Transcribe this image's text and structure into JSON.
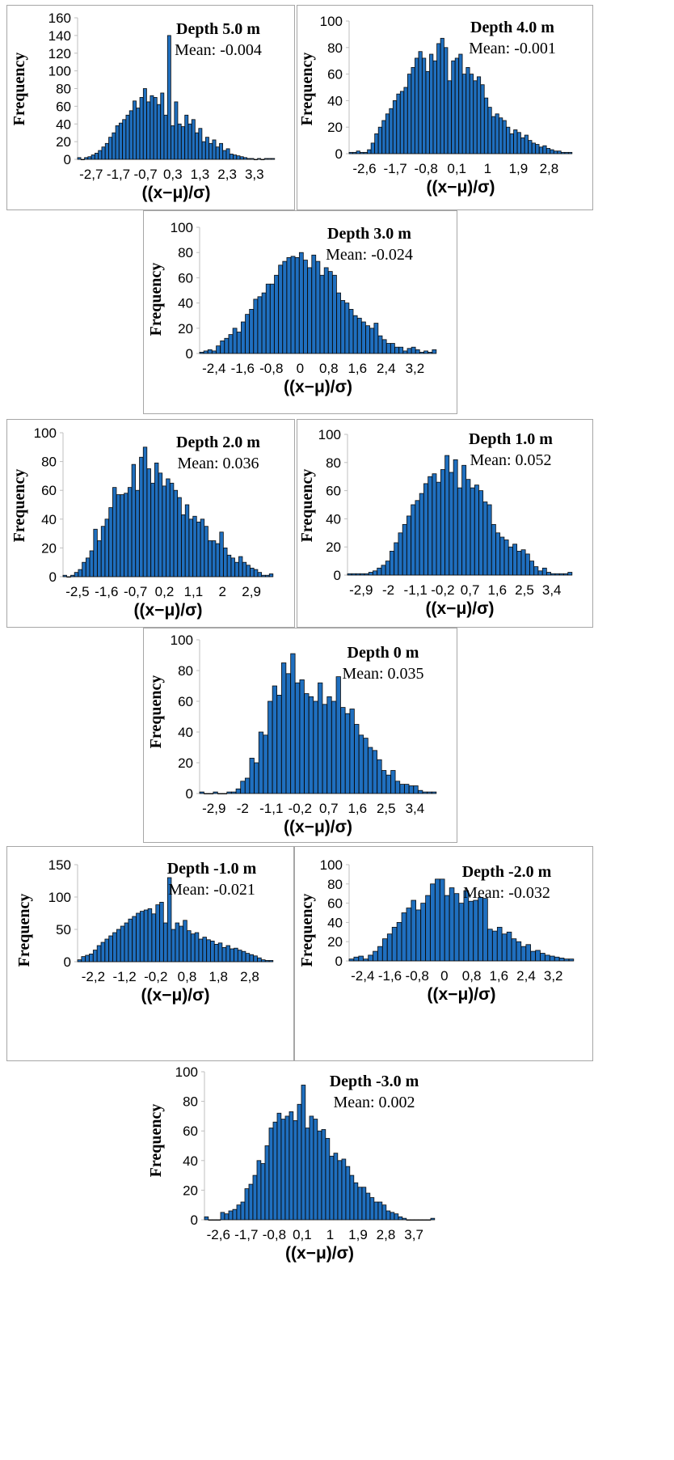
{
  "colors": {
    "bar_fill": "#1f6fbf",
    "bar_stroke": "#0b0b0b",
    "axis": "#bfbfbf",
    "frame": "#a6a6a6"
  },
  "chart_data": [
    {
      "type": "bar",
      "title": "Depth  5.0 m",
      "subtitle": "Mean: -0.004",
      "xlabel": "((x−μ)/σ)",
      "ylabel": "Frequency",
      "ylim": [
        0,
        160
      ],
      "yticks": [
        0,
        20,
        40,
        60,
        80,
        100,
        120,
        140,
        160
      ],
      "xticks": [
        "-2,7",
        "-1,7",
        "-0,7",
        "0,3",
        "1,3",
        "2,3",
        "3,3"
      ],
      "grid": false,
      "values": [
        2,
        0,
        2,
        3,
        5,
        7,
        10,
        14,
        18,
        25,
        30,
        38,
        41,
        45,
        50,
        55,
        66,
        58,
        70,
        80,
        65,
        72,
        70,
        62,
        75,
        50,
        140,
        38,
        65,
        40,
        37,
        50,
        40,
        45,
        30,
        35,
        20,
        25,
        18,
        22,
        14,
        18,
        10,
        12,
        6,
        5,
        4,
        3,
        2,
        1,
        1,
        0,
        1,
        0,
        1,
        1,
        1
      ]
    },
    {
      "type": "bar",
      "title": "Depth  4.0 m",
      "subtitle": "Mean: -0.001",
      "xlabel": "((x−μ)/σ)",
      "ylabel": "Frequency",
      "ylim": [
        0,
        100
      ],
      "yticks": [
        0,
        20,
        40,
        60,
        80,
        100
      ],
      "xticks": [
        "-2,6",
        "-1,7",
        "-0,8",
        "0,1",
        "1",
        "1,9",
        "2,8"
      ],
      "grid": false,
      "values": [
        1,
        1,
        2,
        1,
        1,
        3,
        8,
        15,
        20,
        25,
        30,
        34,
        40,
        45,
        47,
        50,
        60,
        65,
        72,
        77,
        72,
        62,
        75,
        70,
        83,
        87,
        80,
        55,
        70,
        72,
        75,
        60,
        65,
        60,
        55,
        58,
        52,
        42,
        35,
        28,
        30,
        27,
        25,
        20,
        15,
        18,
        16,
        12,
        14,
        10,
        8,
        7,
        5,
        6,
        4,
        3,
        2,
        2,
        1,
        1,
        1
      ]
    },
    {
      "type": "bar",
      "title": "Depth  3.0 m",
      "subtitle": "Mean: -0.024",
      "xlabel": "((x−μ)/σ)",
      "ylabel": "Frequency",
      "ylim": [
        0,
        100
      ],
      "yticks": [
        0,
        20,
        40,
        60,
        80,
        100
      ],
      "xticks": [
        "-2,4",
        "-1,6",
        "-0,8",
        "0",
        "0,8",
        "1,6",
        "2,4",
        "3,2"
      ],
      "grid": false,
      "values": [
        1,
        2,
        3,
        2,
        6,
        10,
        12,
        15,
        20,
        17,
        25,
        31,
        35,
        43,
        45,
        48,
        55,
        55,
        62,
        70,
        73,
        76,
        77,
        76,
        80,
        74,
        68,
        78,
        73,
        62,
        68,
        65,
        62,
        48,
        42,
        40,
        35,
        30,
        28,
        25,
        22,
        20,
        24,
        14,
        11,
        8,
        8,
        5,
        5,
        2,
        4,
        5,
        3,
        1,
        2,
        1,
        3
      ]
    },
    {
      "type": "bar",
      "title": "Depth  2.0 m",
      "subtitle": "Mean: 0.036",
      "xlabel": "((x−μ)/σ)",
      "ylabel": "Frequency",
      "ylim": [
        0,
        100
      ],
      "yticks": [
        0,
        20,
        40,
        60,
        80,
        100
      ],
      "xticks": [
        "-2,5",
        "-1,6",
        "-0,7",
        "0,2",
        "1,1",
        "2",
        "2,9"
      ],
      "grid": false,
      "values": [
        1,
        0,
        1,
        3,
        5,
        10,
        13,
        18,
        33,
        25,
        35,
        40,
        48,
        62,
        57,
        57,
        58,
        62,
        78,
        60,
        83,
        90,
        75,
        65,
        79,
        72,
        63,
        68,
        65,
        60,
        55,
        43,
        50,
        40,
        42,
        38,
        40,
        35,
        25,
        25,
        23,
        31,
        20,
        15,
        13,
        10,
        14,
        10,
        8,
        6,
        5,
        3,
        1,
        1,
        2
      ]
    },
    {
      "type": "bar",
      "title": "Depth  1.0 m",
      "subtitle": "Mean: 0.052",
      "xlabel": "((x−μ)/σ)",
      "ylabel": "Frequency",
      "ylim": [
        0,
        100
      ],
      "yticks": [
        0,
        20,
        40,
        60,
        80,
        100
      ],
      "xticks": [
        "-2,9",
        "-2",
        "-1,1",
        "-0,2",
        "0,7",
        "1,6",
        "2,5",
        "3,4"
      ],
      "grid": false,
      "values": [
        1,
        1,
        1,
        1,
        1,
        2,
        3,
        5,
        7,
        10,
        17,
        23,
        30,
        36,
        42,
        50,
        53,
        58,
        65,
        70,
        72,
        66,
        75,
        85,
        73,
        82,
        62,
        78,
        68,
        62,
        64,
        60,
        52,
        50,
        36,
        30,
        27,
        25,
        20,
        22,
        17,
        18,
        15,
        10,
        6,
        3,
        5,
        2,
        1,
        1,
        1,
        1,
        2
      ]
    },
    {
      "type": "bar",
      "title": "Depth  0 m",
      "subtitle": "Mean: 0.035",
      "xlabel": "((x−μ)/σ)",
      "ylabel": "Frequency",
      "ylim": [
        0,
        100
      ],
      "yticks": [
        0,
        20,
        40,
        60,
        80,
        100
      ],
      "xticks": [
        "-2,9",
        "-2",
        "-1,1",
        "-0,2",
        "0,7",
        "1,6",
        "2,5",
        "3,4"
      ],
      "grid": false,
      "values": [
        1,
        0,
        0,
        1,
        0,
        0,
        1,
        1,
        3,
        8,
        10,
        23,
        20,
        40,
        38,
        60,
        70,
        64,
        85,
        78,
        91,
        72,
        74,
        65,
        63,
        60,
        72,
        58,
        63,
        60,
        76,
        56,
        52,
        55,
        45,
        38,
        36,
        30,
        28,
        22,
        15,
        12,
        15,
        8,
        6,
        6,
        5,
        5,
        2,
        1,
        1,
        1
      ]
    },
    {
      "type": "bar",
      "title": "Depth  -1.0 m",
      "subtitle": "Mean: -0.021",
      "xlabel": "((x−μ)/σ)",
      "ylabel": "Frequency",
      "ylim": [
        0,
        150
      ],
      "yticks": [
        0,
        50,
        100,
        150
      ],
      "xticks": [
        "-2,2",
        "-1,2",
        "-0,2",
        "0,8",
        "1,8",
        "2,8"
      ],
      "grid": false,
      "values": [
        3,
        8,
        10,
        12,
        18,
        25,
        30,
        35,
        40,
        45,
        50,
        55,
        60,
        66,
        70,
        75,
        78,
        80,
        82,
        74,
        88,
        92,
        60,
        130,
        50,
        60,
        55,
        64,
        48,
        43,
        45,
        35,
        38,
        34,
        32,
        27,
        29,
        22,
        25,
        20,
        21,
        18,
        16,
        13,
        11,
        9,
        6,
        3,
        2,
        2
      ]
    },
    {
      "type": "bar",
      "title": "Depth  -2.0 m",
      "subtitle": "Mean: -0.032",
      "xlabel": "((x−μ)/σ)",
      "ylabel": "Frequency",
      "ylim": [
        0,
        100
      ],
      "yticks": [
        0,
        20,
        40,
        60,
        80,
        100
      ],
      "xticks": [
        "-2,4",
        "-1,6",
        "-0,8",
        "0",
        "0,8",
        "1,6",
        "2,4",
        "3,2"
      ],
      "grid": false,
      "values": [
        2,
        4,
        5,
        2,
        6,
        10,
        15,
        23,
        28,
        35,
        40,
        50,
        55,
        63,
        53,
        60,
        68,
        80,
        85,
        85,
        68,
        76,
        70,
        60,
        73,
        62,
        63,
        66,
        65,
        33,
        31,
        35,
        28,
        30,
        23,
        20,
        15,
        17,
        10,
        11,
        8,
        6,
        5,
        4,
        3,
        2,
        2
      ]
    },
    {
      "type": "bar",
      "title": "Depth  -3.0 m",
      "subtitle": "Mean: 0.002",
      "xlabel": "((x−μ)/σ)",
      "ylabel": "Frequency",
      "ylim": [
        0,
        100
      ],
      "yticks": [
        0,
        20,
        40,
        60,
        80,
        100
      ],
      "xticks": [
        "-2,6",
        "-1,7",
        "-0,8",
        "0,1",
        "1",
        "1,9",
        "2,8",
        "3,7"
      ],
      "grid": false,
      "values": [
        2,
        0,
        0,
        0,
        5,
        4,
        6,
        7,
        10,
        12,
        21,
        24,
        30,
        40,
        38,
        50,
        62,
        66,
        72,
        68,
        70,
        73,
        67,
        78,
        91,
        62,
        70,
        68,
        60,
        61,
        55,
        43,
        45,
        40,
        41,
        36,
        30,
        25,
        22,
        22,
        18,
        15,
        12,
        12,
        10,
        6,
        5,
        4,
        2,
        1,
        0,
        0,
        0,
        0,
        0,
        0,
        1
      ]
    }
  ]
}
